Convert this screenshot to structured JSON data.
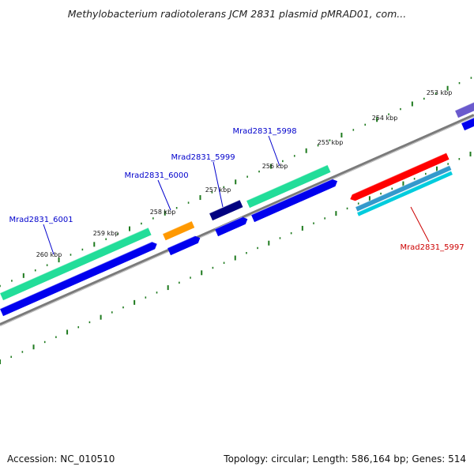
{
  "title": "Methylobacterium radiotolerans JCM 2831 plasmid pMRAD01, com...",
  "colors": {
    "backbone": "#7a7a7a",
    "tick": "#1e7a1e",
    "label_forward": "#0000cc",
    "label_reverse": "#cc0000"
  },
  "kbp_labels": [
    "253 kbp",
    "254 kbp",
    "255 kbp",
    "256 kbp",
    "257 kbp",
    "258 kbp",
    "259 kbp",
    "260 kbp"
  ],
  "genes": [
    {
      "name": "Mrad2831_5997",
      "strand": "reverse",
      "colors": [
        "#ff0000",
        "#3399cc",
        "#00ccdd"
      ],
      "labeled": true
    },
    {
      "name": "Mrad2831_5998",
      "strand": "forward",
      "colors": [
        "#22dd99",
        "#0000ee"
      ],
      "labeled": true
    },
    {
      "name": "Mrad2831_5999",
      "strand": "forward",
      "colors": [
        "#000080",
        "#0000ee"
      ],
      "labeled": true
    },
    {
      "name": "Mrad2831_6000",
      "strand": "forward",
      "colors": [
        "#ff9900",
        "#0000ee"
      ],
      "labeled": true
    },
    {
      "name": "Mrad2831_6001",
      "strand": "forward",
      "colors": [
        "#22dd99",
        "#0000ee"
      ],
      "labeled": true
    },
    {
      "name": "",
      "strand": "forward",
      "colors": [
        "#6a5acd",
        "#0000ee"
      ],
      "labeled": false
    }
  ],
  "footer": {
    "accession": "Accession: NC_010510",
    "topology": "Topology: circular; Length: 586,164 bp; Genes: 514"
  }
}
